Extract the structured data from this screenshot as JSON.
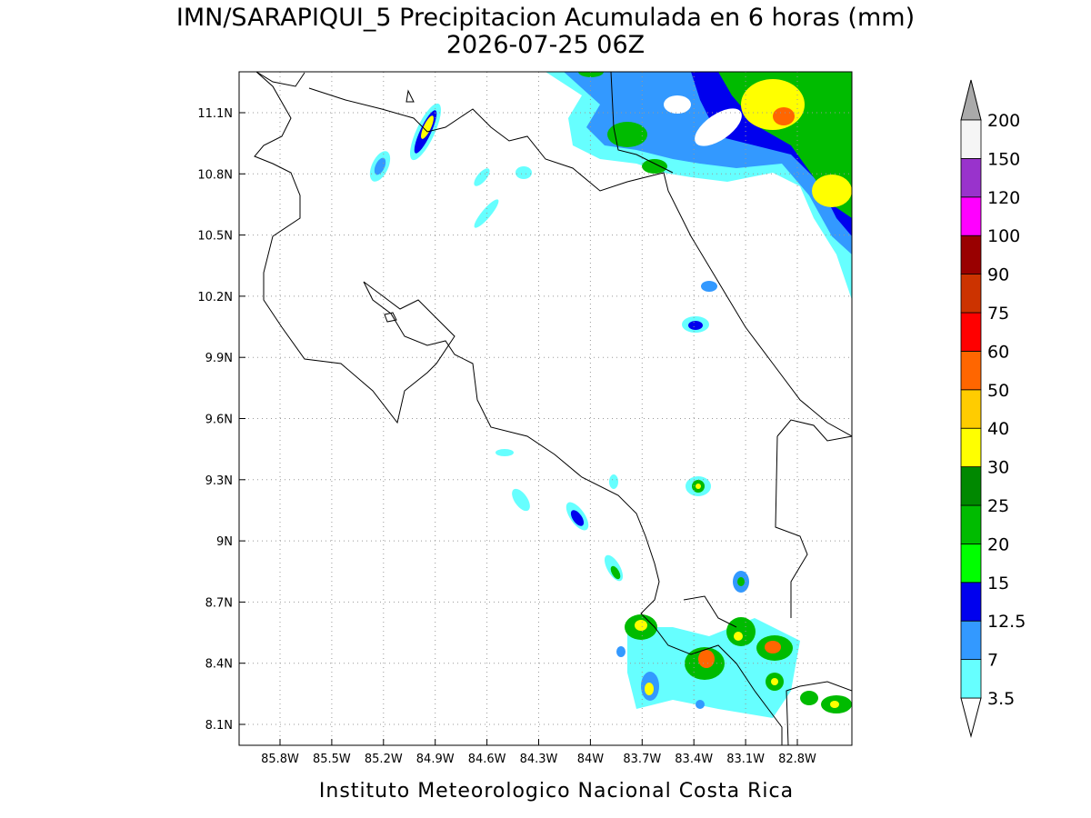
{
  "title": "IMN/SARAPIQUI_5 Precipitacion Acumulada en 6 horas (mm)",
  "subtitle": "2026-07-25 06Z",
  "map": {
    "lat_labels": [
      "11.1N",
      "10.8N",
      "10.5N",
      "10.2N",
      "9.9N",
      "9.6N",
      "9.3N",
      "9N",
      "8.7N",
      "8.4N",
      "8.1N"
    ],
    "lon_labels": [
      "85.8W",
      "85.5W",
      "85.2W",
      "84.9W",
      "84.6W",
      "84.3W",
      "84W",
      "83.7W",
      "83.4W",
      "83.1W",
      "82.8W"
    ]
  },
  "colorbar": {
    "levels": [
      "3.5",
      "7",
      "12.5",
      "15",
      "20",
      "25",
      "30",
      "40",
      "50",
      "60",
      "75",
      "90",
      "100",
      "120",
      "150",
      "200"
    ],
    "colors": [
      "#66ffff",
      "#3399ff",
      "#0000ee",
      "#00ff00",
      "#00bb00",
      "#008800",
      "#ffff00",
      "#ffcc00",
      "#ff6600",
      "#ff0000",
      "#cc3300",
      "#990000",
      "#ff00ff",
      "#9933cc",
      "#f5f5f5"
    ],
    "below_color": "#ffffff",
    "above_color": "#aaaaaa"
  },
  "footer": "Instituto Meteorologico Nacional Costa Rica"
}
